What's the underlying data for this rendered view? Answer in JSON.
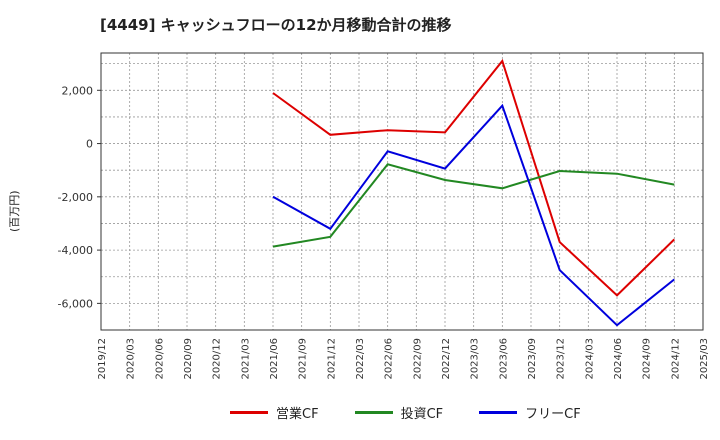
{
  "chart_data": {
    "type": "line",
    "title": "[4449]  キャッシュフローの12か月移動合計の推移",
    "ylabel": "(百万円)",
    "xlabel": "",
    "ylim": [
      -7000,
      3400
    ],
    "yticks": [
      2000,
      0,
      -2000,
      -4000,
      -6000
    ],
    "ytick_labels": [
      "2,000",
      "0",
      "-2,000",
      "-4,000",
      "-6,000"
    ],
    "categories": [
      "2019/12",
      "2020/03",
      "2020/06",
      "2020/09",
      "2020/12",
      "2021/03",
      "2021/06",
      "2021/09",
      "2021/12",
      "2022/03",
      "2022/06",
      "2022/09",
      "2022/12",
      "2023/03",
      "2023/06",
      "2023/09",
      "2023/12",
      "2024/03",
      "2024/06",
      "2024/09",
      "2024/12",
      "2025/03"
    ],
    "grid": true,
    "series": [
      {
        "name": "営業CF",
        "color": "#dd0000",
        "points": [
          [
            "2021/06",
            1900
          ],
          [
            "2021/12",
            330
          ],
          [
            "2022/06",
            500
          ],
          [
            "2022/12",
            420
          ],
          [
            "2023/06",
            3100
          ],
          [
            "2023/12",
            -3700
          ],
          [
            "2024/06",
            -5700
          ],
          [
            "2024/12",
            -3600
          ]
        ]
      },
      {
        "name": "投資CF",
        "color": "#228822",
        "points": [
          [
            "2021/06",
            -3870
          ],
          [
            "2021/12",
            -3500
          ],
          [
            "2022/06",
            -780
          ],
          [
            "2022/12",
            -1370
          ],
          [
            "2023/06",
            -1680
          ],
          [
            "2023/12",
            -1030
          ],
          [
            "2024/06",
            -1130
          ],
          [
            "2024/12",
            -1540
          ]
        ]
      },
      {
        "name": "フリーCF",
        "color": "#0000dd",
        "points": [
          [
            "2021/06",
            -2000
          ],
          [
            "2021/12",
            -3200
          ],
          [
            "2022/06",
            -290
          ],
          [
            "2022/12",
            -940
          ],
          [
            "2023/06",
            1420
          ],
          [
            "2023/12",
            -4750
          ],
          [
            "2024/06",
            -6820
          ],
          [
            "2024/12",
            -5100
          ]
        ]
      }
    ]
  }
}
